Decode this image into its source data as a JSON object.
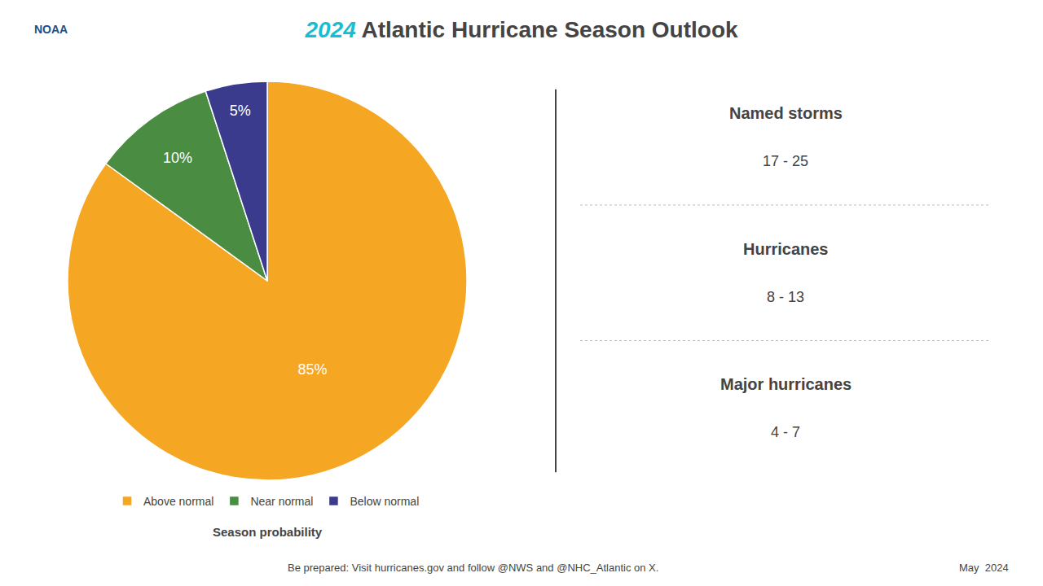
{
  "chart_data": {
    "type": "pie",
    "title": "2024 Atlantic Hurricane Season Outlook",
    "categories": [
      "Above normal",
      "Near normal",
      "Below normal"
    ],
    "values": [
      85,
      10,
      5
    ],
    "value_labels": [
      "85%",
      "10%",
      "5%"
    ],
    "colors": [
      "#F5A623",
      "#4A8C42",
      "#3B3B8E"
    ],
    "data_labels": true,
    "legend": "bottom",
    "annotations": [
      "NOAA",
      "Named storms",
      "17 - 25",
      "Hurricanes",
      "8 - 13",
      "Major hurricanes",
      "4 - 7",
      "Season probability",
      "Be prepared: Visit hurricanes.gov and follow @NWS and @NHC_Atlantic on X.",
      "May  2024"
    ]
  }
}
